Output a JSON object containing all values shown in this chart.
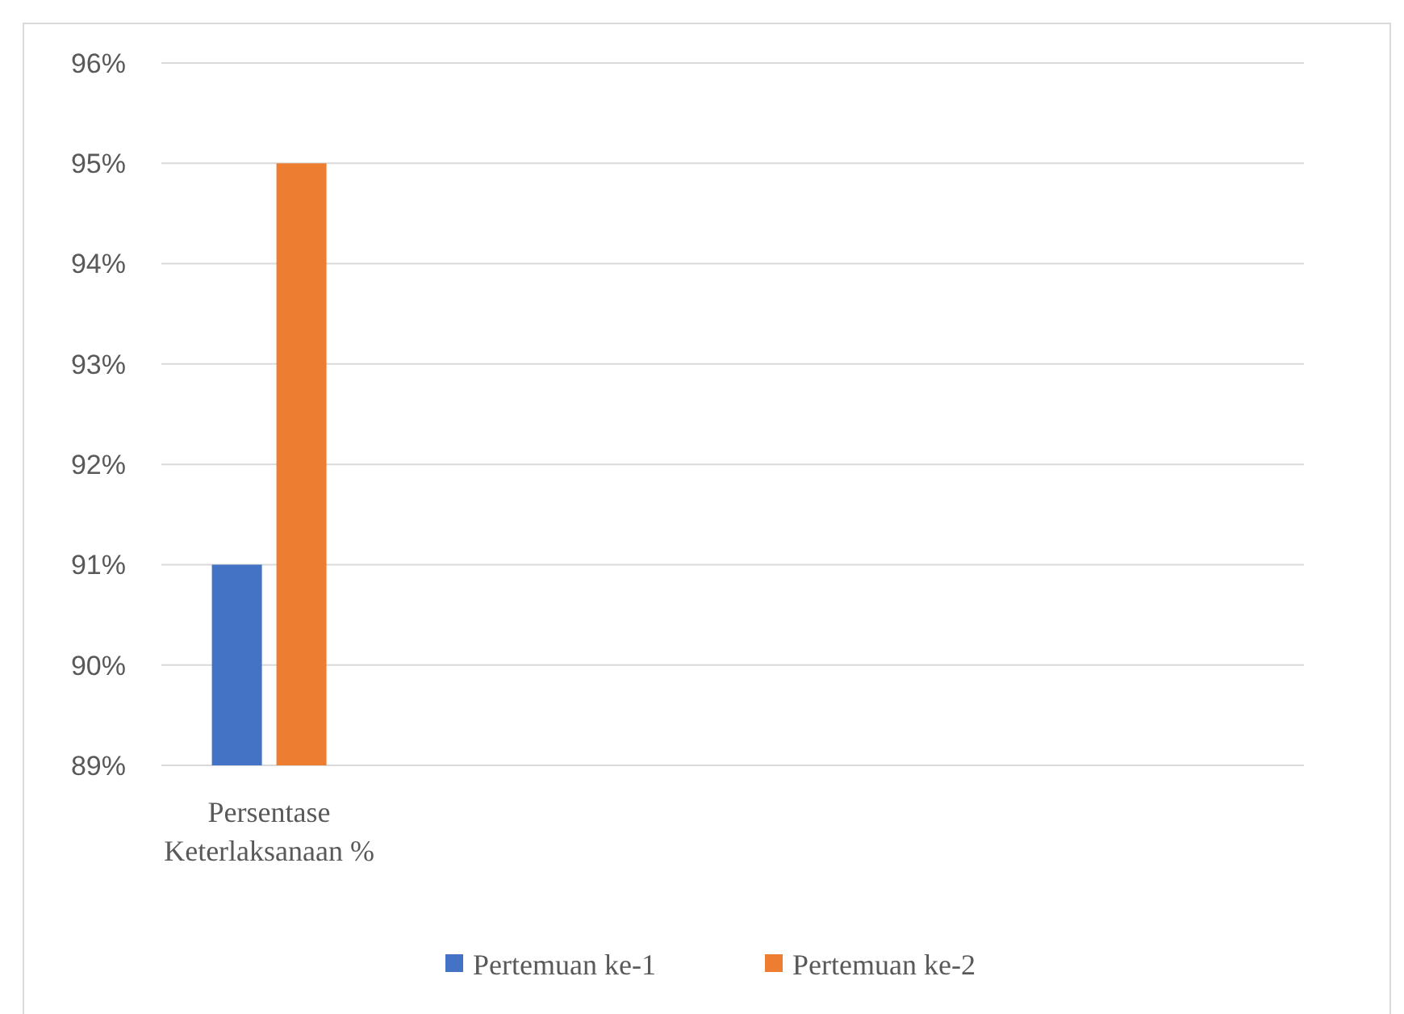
{
  "chart_data": {
    "type": "bar",
    "categories": [
      "Persentase Keterlaksanaan %",
      null,
      null,
      null,
      null
    ],
    "series": [
      {
        "name": "Pertemuan ke-1",
        "color": "#4472c4",
        "values": [
          91,
          null,
          null,
          null,
          null
        ]
      },
      {
        "name": "Pertemuan ke-2",
        "color": "#ed7d31",
        "values": [
          95,
          null,
          null,
          null,
          null
        ]
      }
    ],
    "ylim": [
      89,
      96
    ],
    "yticks": [
      {
        "value": 89,
        "label": "89%"
      },
      {
        "value": 90,
        "label": "90%"
      },
      {
        "value": 91,
        "label": "91%"
      },
      {
        "value": 92,
        "label": "92%"
      },
      {
        "value": 93,
        "label": "93%"
      },
      {
        "value": 94,
        "label": "94%"
      },
      {
        "value": 95,
        "label": "95%"
      },
      {
        "value": 96,
        "label": "96%"
      }
    ],
    "grid": "y",
    "legend": "bottom"
  }
}
